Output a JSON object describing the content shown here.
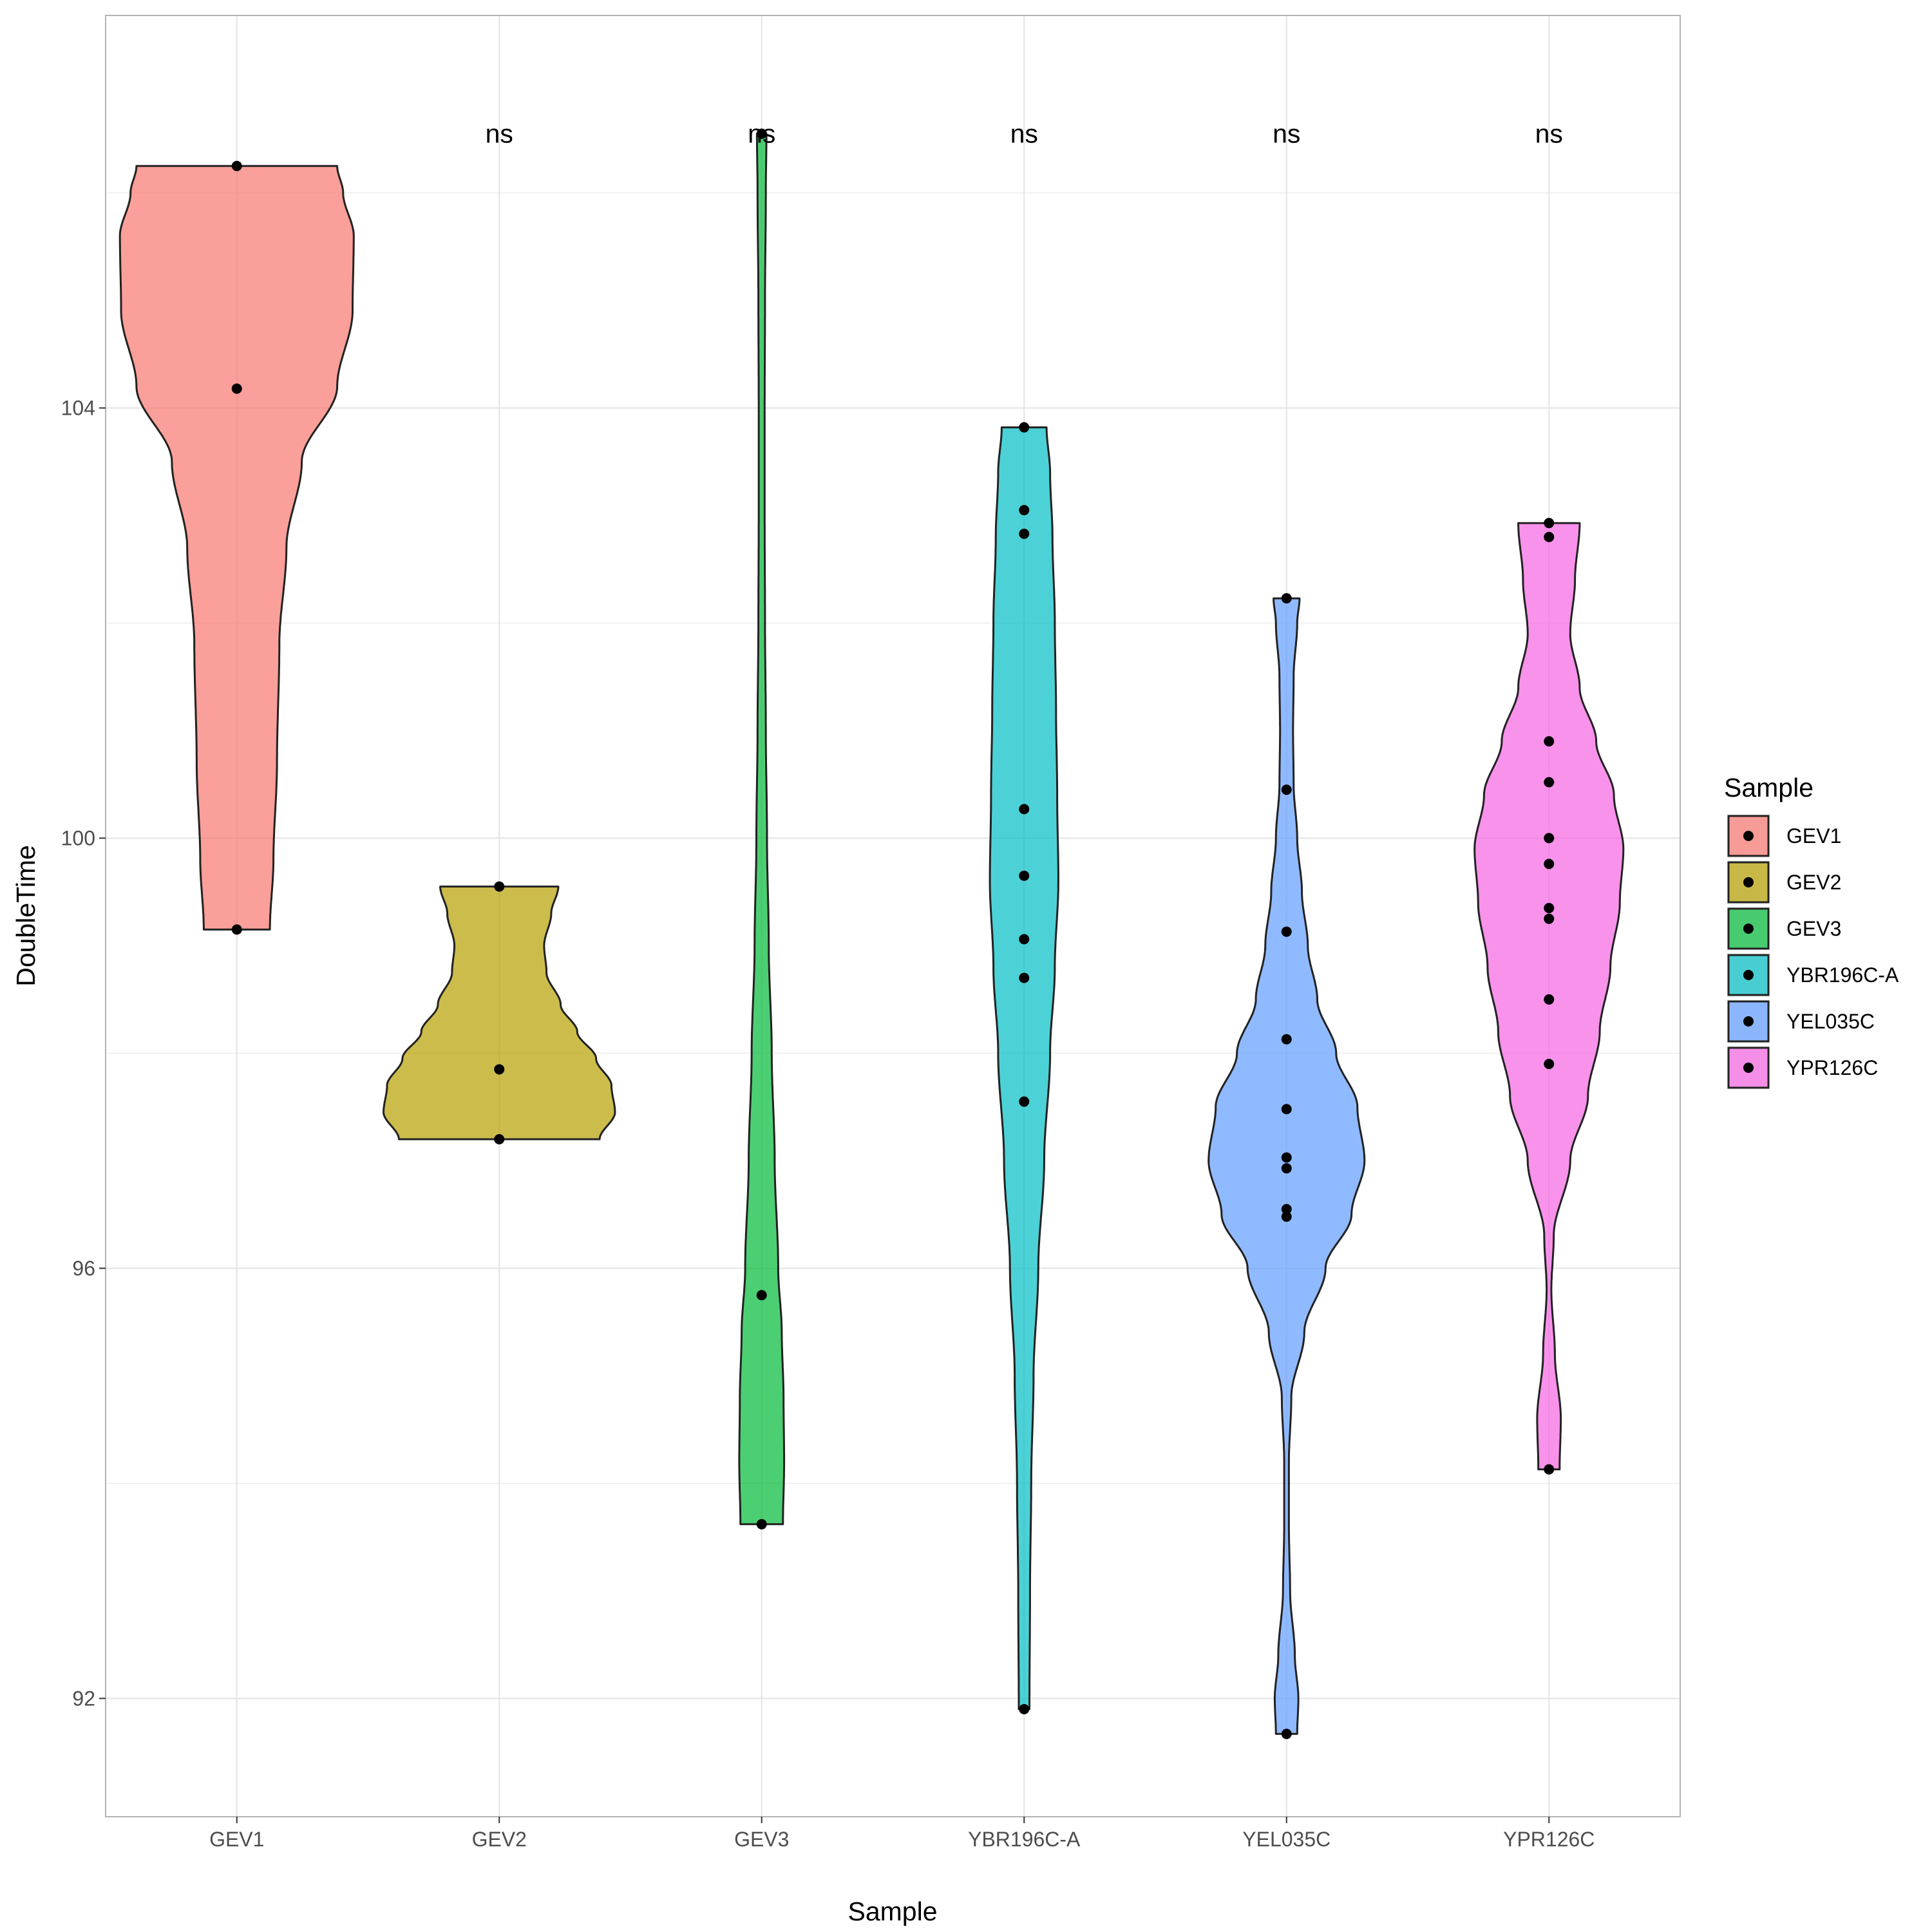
{
  "chart_data": {
    "type": "violin",
    "title": "",
    "xlabel": "Sample",
    "ylabel": "DoubleTime",
    "ylim": [
      90.9,
      107.65
    ],
    "yticks": [
      92,
      96,
      100,
      104
    ],
    "categories": [
      "GEV1",
      "GEV2",
      "GEV3",
      "YBR196C-A",
      "YEL035C",
      "YPR126C"
    ],
    "series": [
      {
        "name": "GEV1",
        "color": "#F8766D",
        "points": [
          106.25,
          104.18,
          99.15
        ],
        "profile": [
          [
            99.15,
            0.28
          ],
          [
            99.8,
            0.31
          ],
          [
            100.7,
            0.34
          ],
          [
            101.8,
            0.36
          ],
          [
            102.7,
            0.42
          ],
          [
            103.5,
            0.55
          ],
          [
            104.2,
            0.85
          ],
          [
            104.9,
            0.98
          ],
          [
            105.6,
            0.99
          ],
          [
            106.0,
            0.9
          ],
          [
            106.25,
            0.85
          ]
        ]
      },
      {
        "name": "GEV2",
        "color": "#B79F00",
        "points": [
          99.55,
          97.85,
          97.2
        ],
        "profile": [
          [
            97.2,
            0.85
          ],
          [
            97.45,
            0.98
          ],
          [
            97.7,
            0.95
          ],
          [
            97.95,
            0.82
          ],
          [
            98.2,
            0.66
          ],
          [
            98.45,
            0.52
          ],
          [
            98.75,
            0.4
          ],
          [
            99.0,
            0.38
          ],
          [
            99.3,
            0.44
          ],
          [
            99.55,
            0.5
          ]
        ]
      },
      {
        "name": "GEV3",
        "color": "#00BA38",
        "points": [
          106.55,
          95.75,
          93.62
        ],
        "profile": [
          [
            93.62,
            0.18
          ],
          [
            94.2,
            0.19
          ],
          [
            94.8,
            0.185
          ],
          [
            95.4,
            0.17
          ],
          [
            96.0,
            0.14
          ],
          [
            97.0,
            0.11
          ],
          [
            98.0,
            0.085
          ],
          [
            99.0,
            0.06
          ],
          [
            100.0,
            0.045
          ],
          [
            101.0,
            0.035
          ],
          [
            102.0,
            0.028
          ],
          [
            103.0,
            0.025
          ],
          [
            104.0,
            0.025
          ],
          [
            105.0,
            0.028
          ],
          [
            106.0,
            0.035
          ],
          [
            106.55,
            0.04
          ]
        ]
      },
      {
        "name": "YBR196C-A",
        "color": "#00BFC4",
        "points": [
          103.82,
          103.05,
          102.83,
          100.27,
          99.65,
          99.06,
          98.7,
          97.55,
          91.9
        ],
        "profile": [
          [
            91.9,
            0.045
          ],
          [
            93.0,
            0.05
          ],
          [
            94.0,
            0.06
          ],
          [
            95.0,
            0.08
          ],
          [
            96.0,
            0.12
          ],
          [
            97.0,
            0.17
          ],
          [
            98.0,
            0.22
          ],
          [
            98.8,
            0.26
          ],
          [
            99.6,
            0.29
          ],
          [
            100.4,
            0.28
          ],
          [
            101.2,
            0.27
          ],
          [
            102.0,
            0.26
          ],
          [
            102.8,
            0.24
          ],
          [
            103.4,
            0.22
          ],
          [
            103.82,
            0.19
          ]
        ]
      },
      {
        "name": "YEL035C",
        "color": "#619CFF",
        "points": [
          102.23,
          100.45,
          99.13,
          98.13,
          97.48,
          97.03,
          96.93,
          96.55,
          96.48,
          91.67
        ],
        "profile": [
          [
            91.67,
            0.09
          ],
          [
            92.0,
            0.1
          ],
          [
            92.4,
            0.07
          ],
          [
            93.0,
            0.03
          ],
          [
            93.6,
            0.02
          ],
          [
            94.2,
            0.02
          ],
          [
            94.8,
            0.04
          ],
          [
            95.4,
            0.15
          ],
          [
            96.0,
            0.33
          ],
          [
            96.5,
            0.55
          ],
          [
            97.0,
            0.66
          ],
          [
            97.5,
            0.6
          ],
          [
            98.0,
            0.42
          ],
          [
            98.5,
            0.26
          ],
          [
            99.0,
            0.18
          ],
          [
            99.5,
            0.13
          ],
          [
            100.0,
            0.09
          ],
          [
            100.5,
            0.06
          ],
          [
            101.0,
            0.055
          ],
          [
            101.5,
            0.06
          ],
          [
            102.0,
            0.09
          ],
          [
            102.23,
            0.11
          ]
        ]
      },
      {
        "name": "YPR126C",
        "color": "#F564E3",
        "points": [
          102.93,
          102.8,
          100.9,
          100.52,
          100.0,
          99.76,
          99.35,
          99.25,
          98.5,
          97.9,
          94.13
        ],
        "profile": [
          [
            94.13,
            0.09
          ],
          [
            94.6,
            0.1
          ],
          [
            95.2,
            0.05
          ],
          [
            95.8,
            0.02
          ],
          [
            96.3,
            0.04
          ],
          [
            97.0,
            0.18
          ],
          [
            97.6,
            0.33
          ],
          [
            98.2,
            0.43
          ],
          [
            98.8,
            0.52
          ],
          [
            99.4,
            0.6
          ],
          [
            99.9,
            0.63
          ],
          [
            100.4,
            0.55
          ],
          [
            100.9,
            0.4
          ],
          [
            101.4,
            0.26
          ],
          [
            101.9,
            0.18
          ],
          [
            102.4,
            0.22
          ],
          [
            102.93,
            0.26
          ]
        ]
      }
    ],
    "annotations": [
      {
        "category": "GEV2",
        "label": "ns"
      },
      {
        "category": "GEV3",
        "label": "ns"
      },
      {
        "category": "YBR196C-A",
        "label": "ns"
      },
      {
        "category": "YEL035C",
        "label": "ns"
      },
      {
        "category": "YPR126C",
        "label": "ns"
      }
    ],
    "annotation_y": 106.55,
    "legend": {
      "title": "Sample",
      "position": "right"
    },
    "grid": true
  }
}
